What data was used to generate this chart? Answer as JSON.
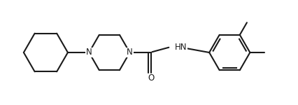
{
  "bg_color": "#ffffff",
  "line_color": "#1a1a1a",
  "line_width": 1.5,
  "text_color": "#1a1a1a",
  "font_size": 8.5,
  "figsize": [
    4.26,
    1.5
  ],
  "dpi": 100,
  "xlim": [
    0,
    10.5
  ],
  "ylim": [
    -1.2,
    2.2
  ]
}
